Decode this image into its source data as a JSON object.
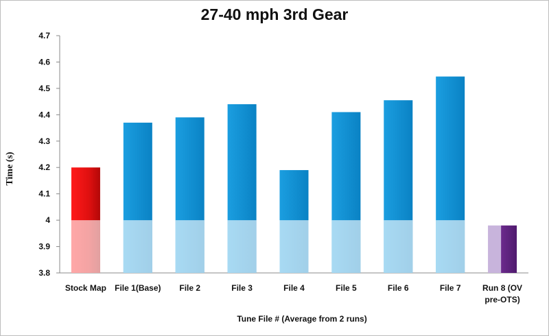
{
  "chart_data": {
    "type": "bar",
    "title": "27-40 mph 3rd Gear",
    "xlabel": "Tune File # (Average from 2 runs)",
    "ylabel": "Time (s)",
    "ylim": [
      3.8,
      4.7
    ],
    "yticks": [
      "3.8",
      "3.9",
      "4",
      "4.1",
      "4.2",
      "4.3",
      "4.4",
      "4.5",
      "4.6",
      "4.7"
    ],
    "grid": false,
    "legend": "none",
    "categories": [
      [
        "Stock Map"
      ],
      [
        "File 1(Base)"
      ],
      [
        "File 2"
      ],
      [
        "File 3"
      ],
      [
        "File 4"
      ],
      [
        "File 5"
      ],
      [
        "File 6"
      ],
      [
        "File 7"
      ],
      [
        "Run 8 (OV",
        "pre-OTS)"
      ]
    ],
    "values": [
      4.2,
      4.37,
      4.39,
      4.44,
      4.19,
      4.41,
      4.455,
      4.545,
      3.98
    ],
    "colors": [
      "#e21b1b",
      "#0f8fd3",
      "#0f8fd3",
      "#0f8fd3",
      "#0f8fd3",
      "#0f8fd3",
      "#0f8fd3",
      "#0f8fd3",
      "#6a2a8a"
    ]
  }
}
